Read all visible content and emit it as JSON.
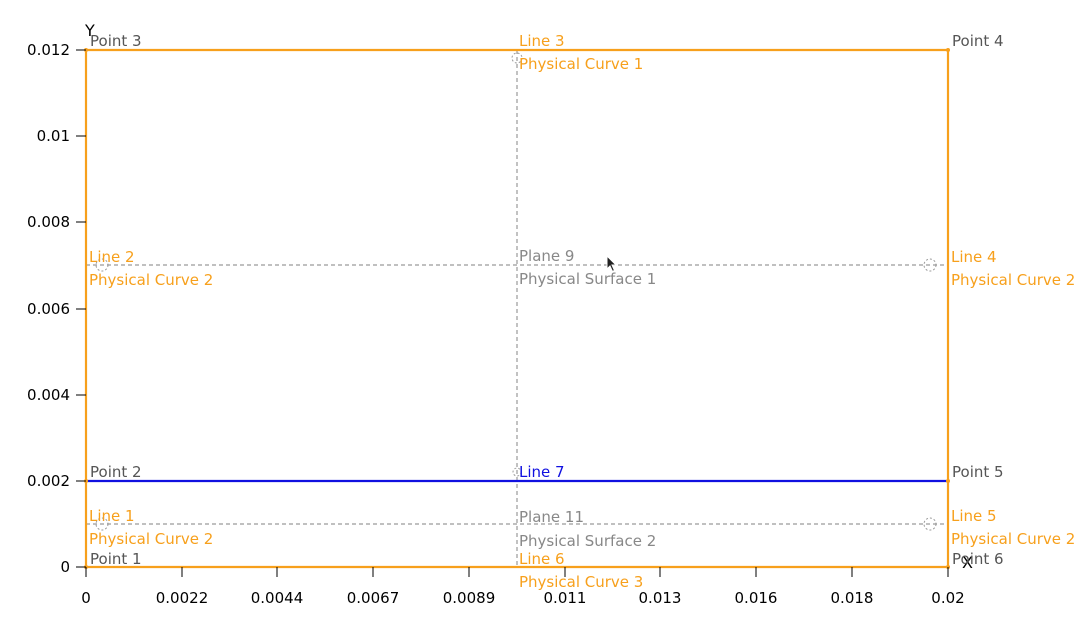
{
  "axes": {
    "x_title": "X",
    "y_title": "Y",
    "x_ticks": [
      "0",
      "0.0022",
      "0.0044",
      "0.0067",
      "0.0089",
      "0.011",
      "0.013",
      "0.016",
      "0.018",
      "0.02"
    ],
    "y_ticks": [
      "0",
      "0.002",
      "0.004",
      "0.006",
      "0.008",
      "0.01",
      "0.012"
    ]
  },
  "colors": {
    "boundary": "#f7a01c",
    "interface": "#1010e0",
    "helper": "#9a9a9a",
    "point_label": "#555555",
    "plane_label": "#888888"
  },
  "points": {
    "p1": "Point 1",
    "p2": "Point 2",
    "p3": "Point 3",
    "p4": "Point 4",
    "p5": "Point 5",
    "p6": "Point 6"
  },
  "lines": {
    "l1": "Line 1",
    "l2": "Line 2",
    "l3": "Line 3",
    "l4": "Line 4",
    "l5": "Line 5",
    "l6": "Line 6",
    "l7": "Line 7"
  },
  "physical": {
    "curve1": "Physical Curve 1",
    "curve2": "Physical Curve 2",
    "curve3": "Physical Curve 3",
    "surface1": "Physical Surface 1",
    "surface2": "Physical Surface 2"
  },
  "planes": {
    "plane9": "Plane 9",
    "plane11": "Plane 11"
  }
}
